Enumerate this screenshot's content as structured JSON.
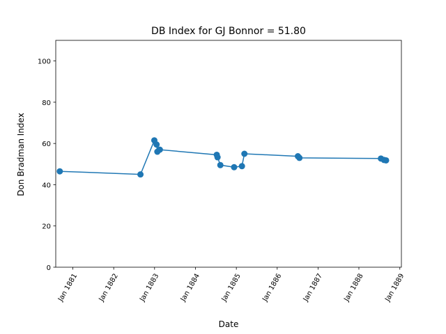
{
  "chart_data": {
    "type": "line",
    "title": "DB Index for GJ Bonnor = 51.80",
    "xlabel": "Date",
    "ylabel": "Don Bradman Index",
    "x_axis": {
      "kind": "date",
      "range": [
        "1880-08-01",
        "1889-01-15"
      ],
      "ticks": [
        {
          "date": "1881-01-01",
          "label": "Jan 1881"
        },
        {
          "date": "1882-01-01",
          "label": "Jan 1882"
        },
        {
          "date": "1883-01-01",
          "label": "Jan 1883"
        },
        {
          "date": "1884-01-01",
          "label": "Jan 1884"
        },
        {
          "date": "1885-01-01",
          "label": "Jan 1885"
        },
        {
          "date": "1886-01-01",
          "label": "Jan 1886"
        },
        {
          "date": "1887-01-01",
          "label": "Jan 1887"
        },
        {
          "date": "1888-01-01",
          "label": "Jan 1888"
        },
        {
          "date": "1889-01-01",
          "label": "Jan 1889"
        }
      ]
    },
    "ylim": [
      0,
      110
    ],
    "yticks": [
      0,
      20,
      40,
      60,
      80,
      100
    ],
    "grid": false,
    "series": [
      {
        "color": "#1f77b4",
        "marker": "circle",
        "points": [
          {
            "x": "1880-09-06",
            "y": 46.5
          },
          {
            "x": "1882-08-28",
            "y": 45.0
          },
          {
            "x": "1882-12-30",
            "y": 61.5
          },
          {
            "x": "1883-01-19",
            "y": 59.5
          },
          {
            "x": "1883-01-26",
            "y": 56.0
          },
          {
            "x": "1883-02-17",
            "y": 57.0
          },
          {
            "x": "1884-07-10",
            "y": 54.5
          },
          {
            "x": "1884-07-17",
            "y": 53.3
          },
          {
            "x": "1884-08-11",
            "y": 49.5
          },
          {
            "x": "1884-12-12",
            "y": 48.5
          },
          {
            "x": "1885-02-20",
            "y": 49.0
          },
          {
            "x": "1885-03-14",
            "y": 55.0
          },
          {
            "x": "1886-07-05",
            "y": 53.8
          },
          {
            "x": "1886-07-19",
            "y": 53.0
          },
          {
            "x": "1888-07-16",
            "y": 52.7
          },
          {
            "x": "1888-08-13",
            "y": 52.0
          },
          {
            "x": "1888-08-31",
            "y": 51.8
          }
        ]
      }
    ]
  }
}
